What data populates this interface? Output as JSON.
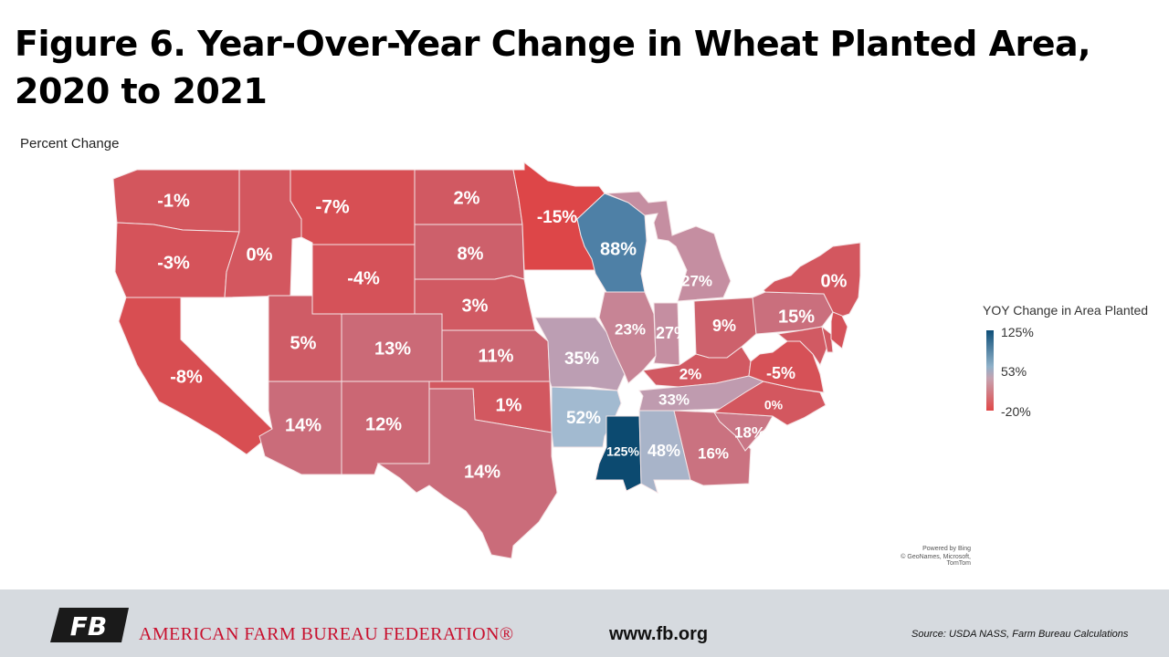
{
  "title": "Figure 6. Year-Over-Year Change in Wheat Planted Area, 2020 to 2021",
  "subtitle": "Percent Change",
  "legend": {
    "title": "YOY Change in Area Planted",
    "max_label": "125%",
    "mid_label": "53%",
    "min_label": "-20%",
    "colors": {
      "high": "#0f4f78",
      "mid": "#9fbad0",
      "low": "#e04848"
    }
  },
  "states": [
    {
      "id": "WA",
      "label": "-1%",
      "value": -1
    },
    {
      "id": "OR",
      "label": "-3%",
      "value": -3
    },
    {
      "id": "CA",
      "label": "-8%",
      "value": -8
    },
    {
      "id": "ID",
      "label": "0%",
      "value": 0
    },
    {
      "id": "MT",
      "label": "-7%",
      "value": -7
    },
    {
      "id": "WY",
      "label": "-4%",
      "value": -4
    },
    {
      "id": "UT",
      "label": "5%",
      "value": 5
    },
    {
      "id": "AZ",
      "label": "14%",
      "value": 14
    },
    {
      "id": "CO",
      "label": "13%",
      "value": 13
    },
    {
      "id": "NM",
      "label": "12%",
      "value": 12
    },
    {
      "id": "ND",
      "label": "2%",
      "value": 2
    },
    {
      "id": "SD",
      "label": "8%",
      "value": 8
    },
    {
      "id": "NE",
      "label": "3%",
      "value": 3
    },
    {
      "id": "KS",
      "label": "11%",
      "value": 11
    },
    {
      "id": "OK",
      "label": "1%",
      "value": 1
    },
    {
      "id": "TX",
      "label": "14%",
      "value": 14
    },
    {
      "id": "MN",
      "label": "-15%",
      "value": -15
    },
    {
      "id": "WI",
      "label": "88%",
      "value": 88
    },
    {
      "id": "MO",
      "label": "35%",
      "value": 35
    },
    {
      "id": "AR",
      "label": "52%",
      "value": 52
    },
    {
      "id": "MS",
      "label": "125%",
      "value": 125
    },
    {
      "id": "AL",
      "label": "48%",
      "value": 48
    },
    {
      "id": "IL",
      "label": "23%",
      "value": 23
    },
    {
      "id": "IN",
      "label": "27%",
      "value": 27
    },
    {
      "id": "MI",
      "label": "27%",
      "value": 27
    },
    {
      "id": "OH",
      "label": "9%",
      "value": 9
    },
    {
      "id": "KY",
      "label": "2%",
      "value": 2
    },
    {
      "id": "TN",
      "label": "33%",
      "value": 33
    },
    {
      "id": "GA",
      "label": "16%",
      "value": 16
    },
    {
      "id": "SC",
      "label": "18%",
      "value": 18
    },
    {
      "id": "NC",
      "label": "0%",
      "value": 0
    },
    {
      "id": "VA",
      "label": "-5%",
      "value": -5
    },
    {
      "id": "PA",
      "label": "15%",
      "value": 15
    },
    {
      "id": "NY",
      "label": "0%",
      "value": 0
    },
    {
      "id": "MD",
      "label": "",
      "value": 3
    },
    {
      "id": "DE",
      "label": "",
      "value": 2
    },
    {
      "id": "NJ",
      "label": "",
      "value": -4
    }
  ],
  "credit": {
    "line1": "Powered by Bing",
    "line2": "© GeoNames, Microsoft, TomTom"
  },
  "footer": {
    "logo_text": "FB",
    "org_name": "AMERICAN FARM BUREAU FEDERATION®",
    "website": "www.fb.org",
    "source": "Source: USDA NASS, Farm Bureau Calculations"
  }
}
